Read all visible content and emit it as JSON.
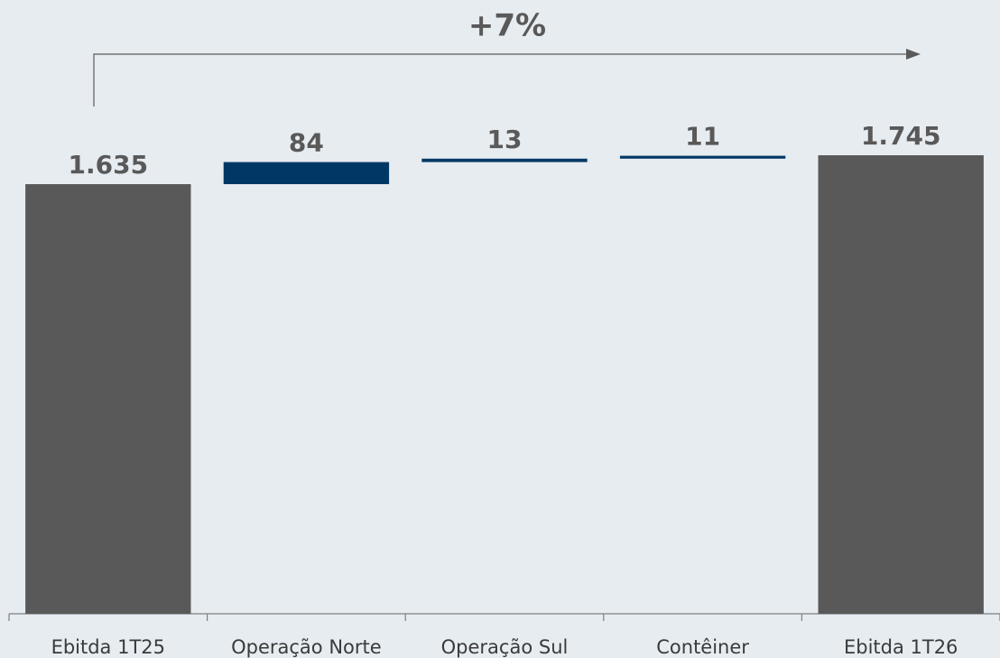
{
  "chart_data": {
    "type": "waterfall",
    "annotation": "+7%",
    "categories": [
      "Ebitda 1T25",
      "Operação Norte",
      "Operação Sul",
      "Contêiner",
      "Ebitda 1T26"
    ],
    "values": [
      1635,
      84,
      13,
      11,
      1745
    ],
    "value_labels": [
      "1.635",
      "84",
      "13",
      "11",
      "1.745"
    ],
    "measure": [
      "total",
      "relative",
      "relative",
      "relative",
      "total"
    ],
    "total_color": "#595959",
    "increase_color": "#003865"
  }
}
